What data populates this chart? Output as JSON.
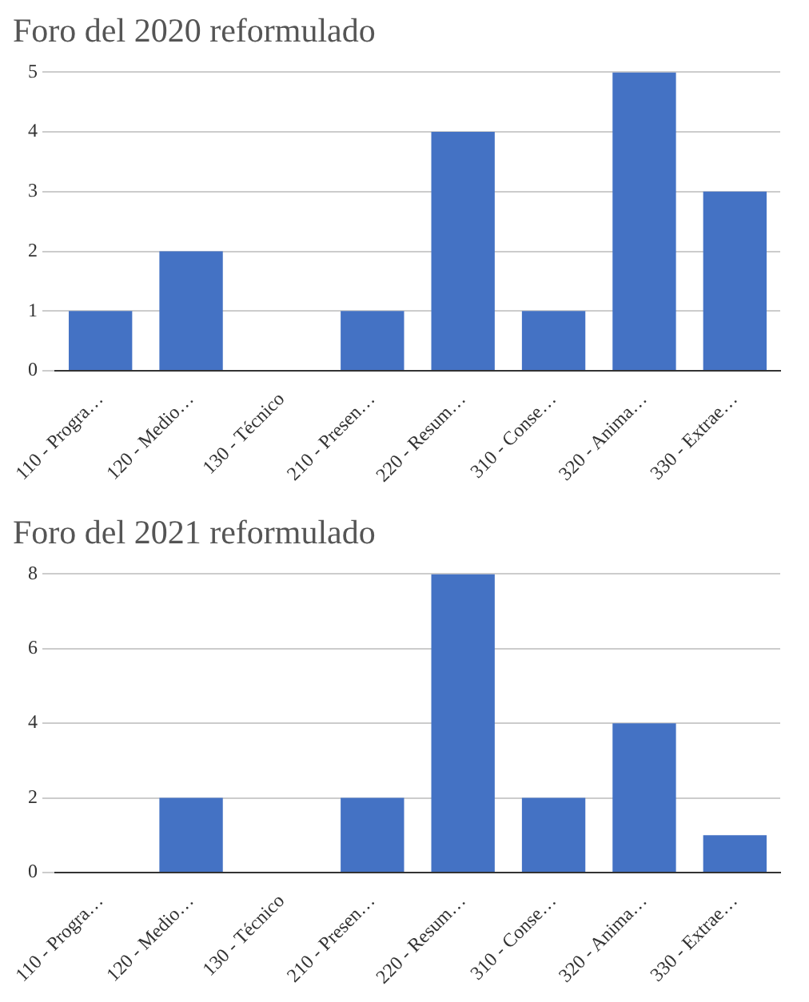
{
  "chart_data": [
    {
      "type": "bar",
      "title": "Foro del 2020 reformulado",
      "categories": [
        "110 - Progra…",
        "120 - Medio…",
        "130 - Técnico",
        "210 - Presen…",
        "220 - Resum…",
        "310 - Conse…",
        "320 - Anima…",
        "330 - Extrae…"
      ],
      "values": [
        1,
        2,
        0,
        1,
        4,
        1,
        5,
        3
      ],
      "color": "#4472c4",
      "ylim": [
        0,
        5
      ],
      "yticks": [
        0,
        1,
        2,
        3,
        4,
        5
      ],
      "grid": "y"
    },
    {
      "type": "bar",
      "title": "Foro del 2021 reformulado",
      "categories": [
        "110 - Progra…",
        "120 - Medio…",
        "130 - Técnico",
        "210 - Presen…",
        "220 - Resum…",
        "310 - Conse…",
        "320 - Anima…",
        "330 - Extrae…"
      ],
      "values": [
        0,
        2,
        0,
        2,
        8,
        2,
        4,
        1
      ],
      "color": "#4472c4",
      "ylim": [
        0,
        8
      ],
      "yticks": [
        0,
        2,
        4,
        6,
        8
      ],
      "grid": "y"
    }
  ]
}
